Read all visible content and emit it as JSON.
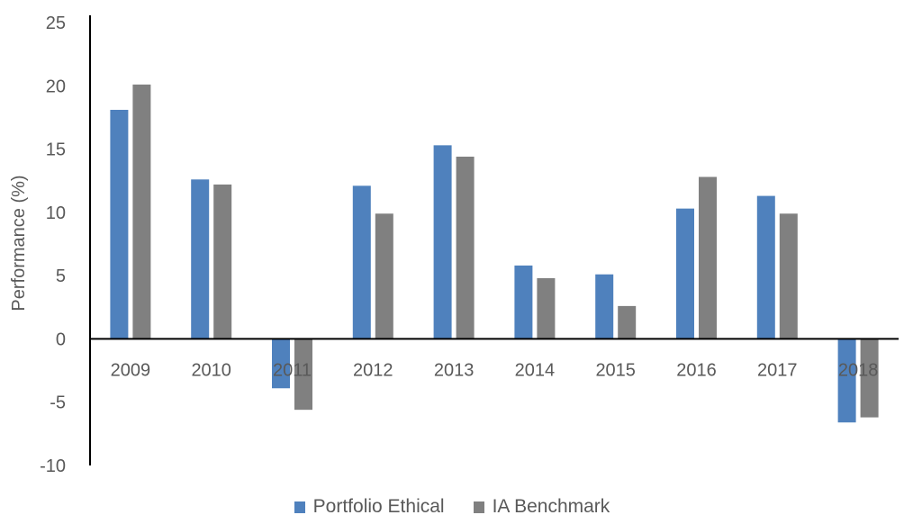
{
  "chart_data": {
    "type": "bar",
    "title": "",
    "xlabel": "",
    "ylabel": "Performance (%)",
    "ylim": [
      -10,
      25
    ],
    "yticks": [
      -10,
      -5,
      0,
      5,
      10,
      15,
      20,
      25
    ],
    "grid": false,
    "legend_position": "bottom",
    "categories": [
      "2009",
      "2010",
      "2011",
      "2012",
      "2013",
      "2014",
      "2015",
      "2016",
      "2017",
      "2018"
    ],
    "series": [
      {
        "name": "Portfolio Ethical",
        "color": "#4f81bd",
        "values": [
          18.1,
          12.6,
          -3.9,
          12.1,
          15.3,
          5.8,
          5.1,
          10.3,
          11.3,
          -6.6
        ]
      },
      {
        "name": "IA Benchmark",
        "color": "#808080",
        "values": [
          20.1,
          12.2,
          -5.6,
          9.9,
          14.4,
          4.8,
          2.6,
          12.8,
          9.9,
          -6.2
        ]
      }
    ]
  }
}
